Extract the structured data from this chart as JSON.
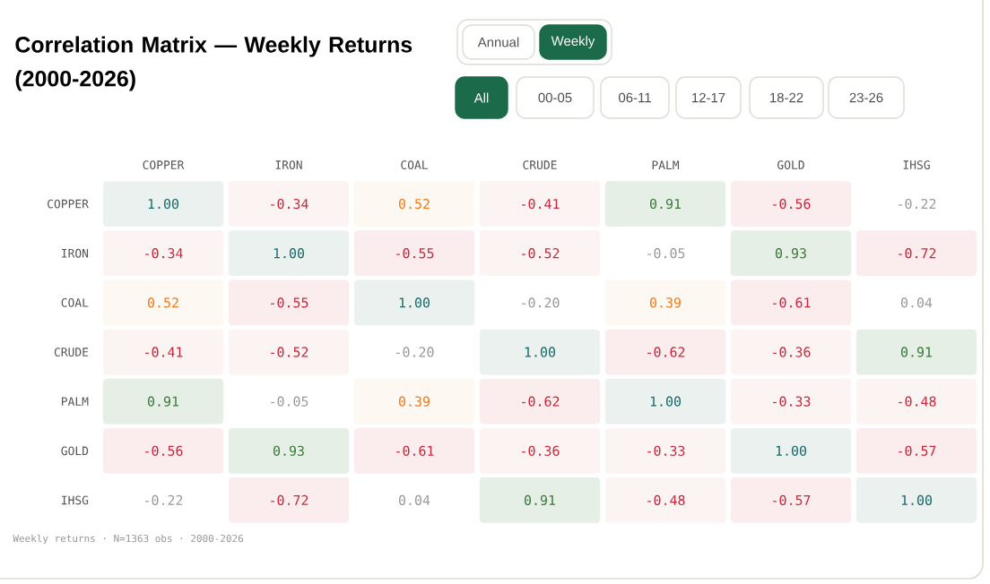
{
  "chart_data": {
    "type": "heatmap",
    "title": "Correlation Matrix — Weekly Returns (2000-2026)",
    "categories": [
      "COPPER",
      "IRON",
      "COAL",
      "CRUDE",
      "PALM",
      "GOLD",
      "IHSG"
    ],
    "y_categories": [
      "COPPER",
      "IRON",
      "COAL",
      "CRUDE",
      "PALM",
      "GOLD",
      "IHSG"
    ],
    "cells": [
      [
        1.0,
        -0.34,
        0.52,
        -0.41,
        0.91,
        -0.56,
        -0.22
      ],
      [
        -0.34,
        1.0,
        -0.55,
        -0.52,
        -0.05,
        0.93,
        -0.72
      ],
      [
        0.52,
        -0.55,
        1.0,
        -0.2,
        0.39,
        -0.61,
        0.04
      ],
      [
        -0.41,
        -0.52,
        -0.2,
        1.0,
        -0.62,
        -0.36,
        0.91
      ],
      [
        0.91,
        -0.05,
        0.39,
        -0.62,
        1.0,
        -0.33,
        -0.48
      ],
      [
        -0.56,
        0.93,
        -0.61,
        -0.36,
        -0.33,
        1.0,
        -0.57
      ],
      [
        -0.22,
        -0.72,
        0.04,
        0.91,
        -0.48,
        -0.57,
        1.0
      ]
    ],
    "cell_labels": [
      [
        "1.00",
        "-0.34",
        "0.52",
        "-0.41",
        "0.91",
        "-0.56",
        "-0.22"
      ],
      [
        "-0.34",
        "1.00",
        "-0.55",
        "-0.52",
        "-0.05",
        "0.93",
        "-0.72"
      ],
      [
        "0.52",
        "-0.55",
        "1.00",
        "-0.20",
        "0.39",
        "-0.61",
        "0.04"
      ],
      [
        "-0.41",
        "-0.52",
        "-0.20",
        "1.00",
        "-0.62",
        "-0.36",
        "0.91"
      ],
      [
        "0.91",
        "-0.05",
        "0.39",
        "-0.62",
        "1.00",
        "-0.33",
        "-0.48"
      ],
      [
        "-0.56",
        "0.93",
        "-0.61",
        "-0.36",
        "-0.33",
        "1.00",
        "-0.57"
      ],
      [
        "-0.22",
        "-0.72",
        "0.04",
        "0.91",
        "-0.48",
        "-0.57",
        "1.00"
      ]
    ],
    "annotations": [
      "Weekly returns · N=1363 obs · 2000-2026",
      "Annual",
      "Weekly",
      "All",
      "00-05",
      "06-11",
      "12-17",
      "18-22",
      "23-26"
    ]
  }
}
